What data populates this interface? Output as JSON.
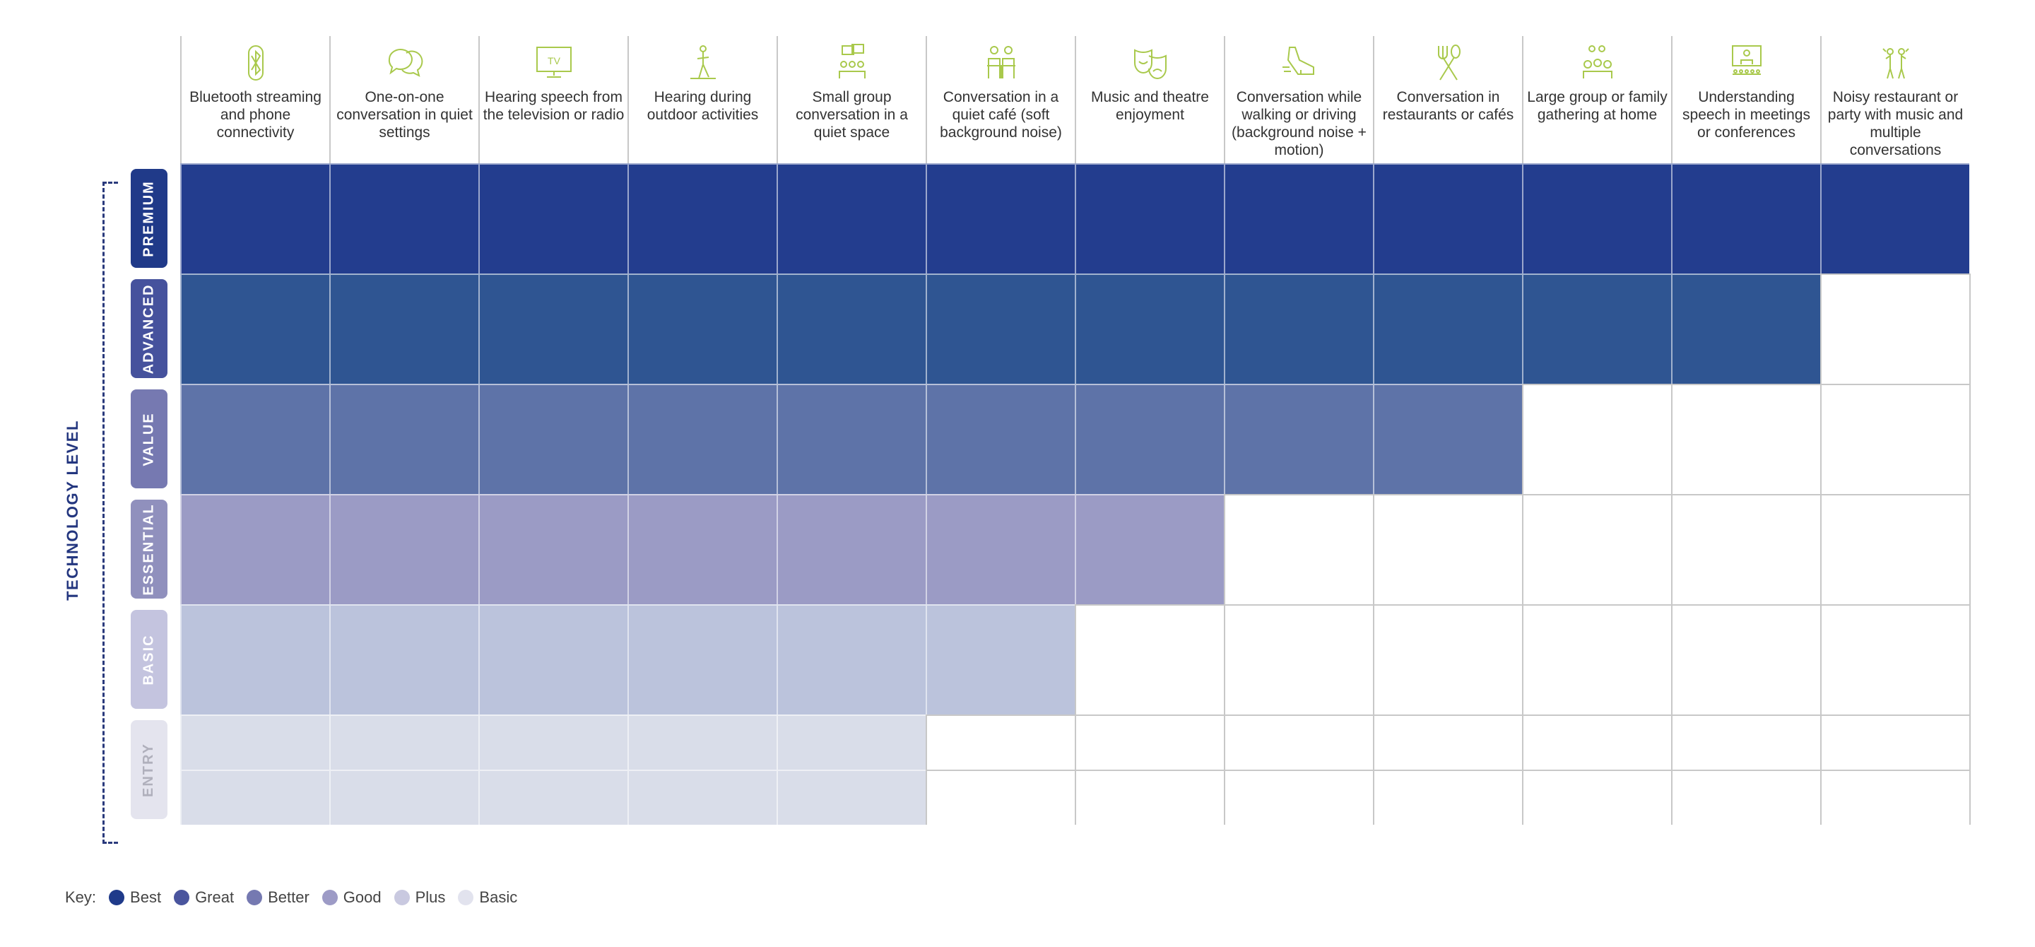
{
  "chart_data": {
    "type": "table",
    "title": "",
    "ylabel": "TECHNOLOGY LEVEL",
    "columns": [
      "Bluetooth streaming and phone connectivity",
      "One-on-one conversation in quiet settings",
      "Hearing speech from the television or radio",
      "Hearing during outdoor activities",
      "Small group conversation in a quiet space",
      "Conversation in a quiet café (soft background noise)",
      "Music and theatre enjoyment",
      "Conversation while walking or driving (background noise + motion)",
      "Conversation in restaurants or cafés",
      "Large group or family gathering at home",
      "Understanding speech in meetings or conferences",
      "Noisy restaurant or party with music and multiple conversations"
    ],
    "column_icons": [
      "bluetooth-icon",
      "speech-bubbles-icon",
      "tv-icon",
      "outdoor-hiker-icon",
      "group-chat-icon",
      "cafe-icon",
      "theatre-masks-icon",
      "sneaker-icon",
      "fork-spoon-icon",
      "family-gathering-icon",
      "conference-icon",
      "party-icon"
    ],
    "rows": [
      {
        "level": "PREMIUM",
        "columns_covered": 12,
        "color": "#233d8e",
        "pill_color": "#203a89",
        "text_color": "#ffffff"
      },
      {
        "level": "ADVANCED",
        "columns_covered": 11,
        "color": "#2f5592",
        "pill_color": "#46529d",
        "text_color": "#ffffff"
      },
      {
        "level": "VALUE",
        "columns_covered": 9,
        "color": "#5e73a8",
        "pill_color": "#7679b1",
        "text_color": "#ffffff"
      },
      {
        "level": "ESSENTIAL",
        "columns_covered": 7,
        "color": "#9b9bc5",
        "pill_color": "#9090bd",
        "text_color": "#ffffff"
      },
      {
        "level": "BASIC",
        "columns_covered": 6,
        "color": "#bbc3dc",
        "pill_color": "#c4c4df",
        "text_color": "#ffffff"
      },
      {
        "level": "ENTRY",
        "columns_covered": 5,
        "color": "#d9dde9",
        "pill_color": "#e4e4ee",
        "text_color": "#b0b0bc"
      }
    ],
    "legend": {
      "title": "Key:",
      "placement": "bottom-left",
      "items": [
        {
          "label": "Best",
          "color": "#1f3a8a"
        },
        {
          "label": "Great",
          "color": "#4a559e"
        },
        {
          "label": "Better",
          "color": "#7579b1"
        },
        {
          "label": "Good",
          "color": "#9d9bc6"
        },
        {
          "label": "Plus",
          "color": "#c9c9e0"
        },
        {
          "label": "Basic",
          "color": "#e2e3ee"
        }
      ]
    },
    "icon_color": "#a9c94c"
  }
}
